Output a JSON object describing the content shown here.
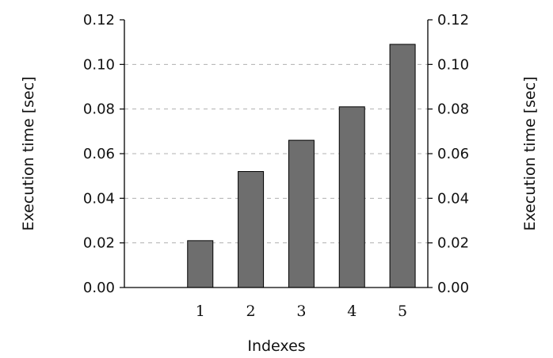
{
  "chart_data": {
    "type": "bar",
    "categories": [
      "1",
      "2",
      "3",
      "4",
      "5"
    ],
    "values": [
      0.021,
      0.052,
      0.066,
      0.081,
      0.109
    ],
    "title": "",
    "xlabel": "Indexes",
    "ylabel_left": "Execution time [sec]",
    "ylabel_right": "Execution time [sec]",
    "ylim": [
      0,
      0.12
    ],
    "yticks": [
      "0.00",
      "0.02",
      "0.04",
      "0.06",
      "0.08",
      "0.10",
      "0.12"
    ],
    "grid": "horizontal dashed",
    "legend": "none",
    "colors": {
      "bar": "#6e6e6e",
      "bar_edge": "#000000",
      "grid": "#b0b0b0"
    }
  }
}
